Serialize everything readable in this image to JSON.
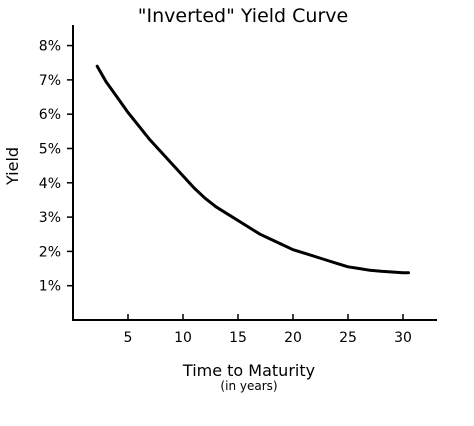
{
  "chart_data": {
    "type": "line",
    "title": "\"Inverted\" Yield Curve",
    "xlabel": "Time to Maturity",
    "xlabel_sub": "(in years)",
    "ylabel": "Yield",
    "xlim": [
      0,
      33
    ],
    "ylim": [
      0,
      8.6
    ],
    "x_ticks": [
      5,
      10,
      15,
      20,
      25,
      30
    ],
    "x_tick_labels": [
      "5",
      "10",
      "15",
      "20",
      "25",
      "30"
    ],
    "y_ticks": [
      1,
      2,
      3,
      4,
      5,
      6,
      7,
      8
    ],
    "y_tick_labels": [
      "1%",
      "2%",
      "3%",
      "4%",
      "5%",
      "6%",
      "7%",
      "8%"
    ],
    "grid": false,
    "series": [
      {
        "x": [
          2.2,
          3,
          4,
          5,
          6,
          7,
          8,
          9,
          10,
          11,
          12,
          13,
          14,
          15,
          16,
          17,
          18,
          19,
          20,
          21,
          22,
          23,
          24,
          25,
          26,
          27,
          28,
          29,
          30,
          30.5
        ],
        "values": [
          7.4,
          6.95,
          6.5,
          6.05,
          5.65,
          5.25,
          4.9,
          4.55,
          4.2,
          3.85,
          3.55,
          3.3,
          3.1,
          2.9,
          2.7,
          2.5,
          2.35,
          2.2,
          2.05,
          1.95,
          1.85,
          1.75,
          1.65,
          1.55,
          1.5,
          1.45,
          1.42,
          1.4,
          1.38,
          1.38
        ],
        "color": "#000000"
      }
    ]
  }
}
